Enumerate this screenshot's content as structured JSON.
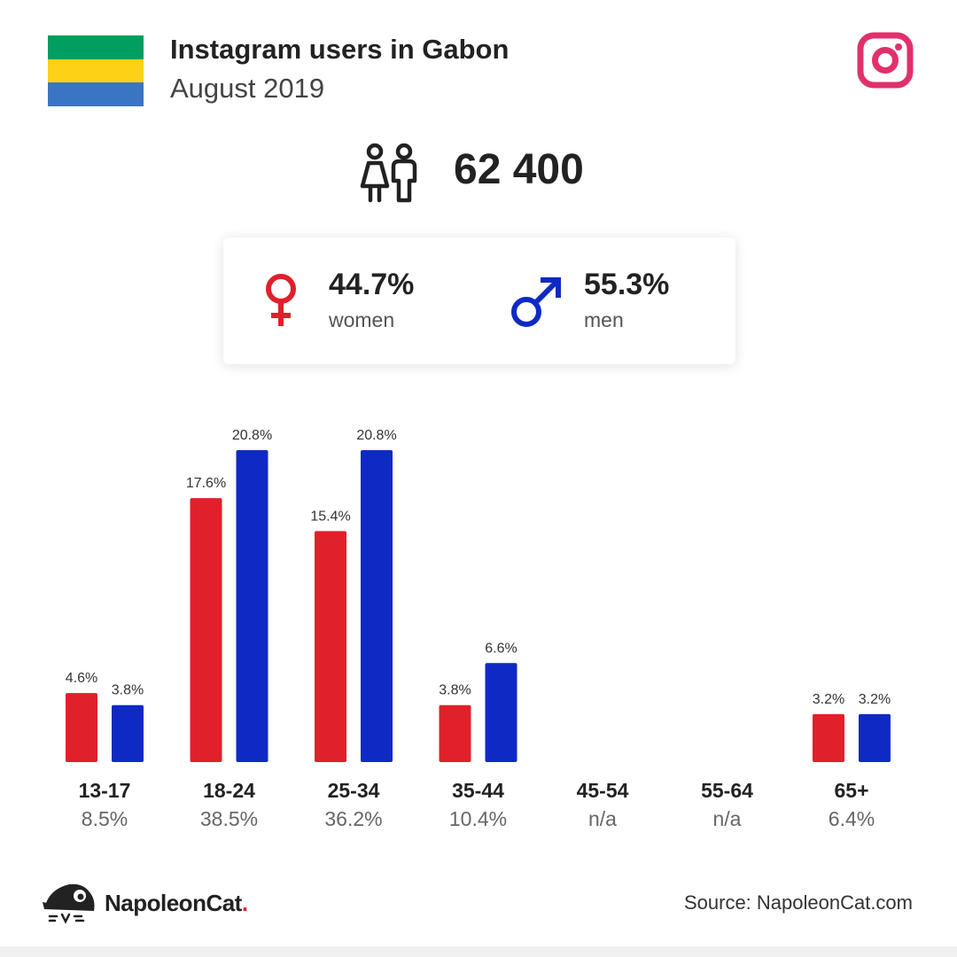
{
  "header": {
    "title": "Instagram users in Gabon",
    "subtitle": "August 2019"
  },
  "flag": {
    "colors": [
      "#009e60",
      "#fcd116",
      "#3a75c4"
    ]
  },
  "total_users": "62 400",
  "gender": {
    "women": {
      "pct": "44.7%",
      "label": "women",
      "color": "#e0202a"
    },
    "men": {
      "pct": "55.3%",
      "label": "men",
      "color": "#0f2ac4"
    }
  },
  "chart_data": {
    "type": "bar",
    "categories": [
      "13-17",
      "18-24",
      "25-34",
      "35-44",
      "45-54",
      "55-64",
      "65+"
    ],
    "totals": [
      "8.5%",
      "38.5%",
      "36.2%",
      "10.4%",
      "n/a",
      "n/a",
      "6.4%"
    ],
    "series": [
      {
        "key": "women",
        "color": "#e0202a",
        "values": [
          4.6,
          17.6,
          15.4,
          3.8,
          null,
          null,
          3.2
        ]
      },
      {
        "key": "men",
        "color": "#0f2ac4",
        "values": [
          3.8,
          20.8,
          20.8,
          6.6,
          null,
          null,
          3.2
        ]
      }
    ],
    "value_suffix": "%",
    "ylim": [
      0,
      20.8
    ]
  },
  "footer": {
    "brand_name": "NapoleonCat",
    "brand_dot": ".",
    "source": "Source: NapoleonCat.com"
  }
}
